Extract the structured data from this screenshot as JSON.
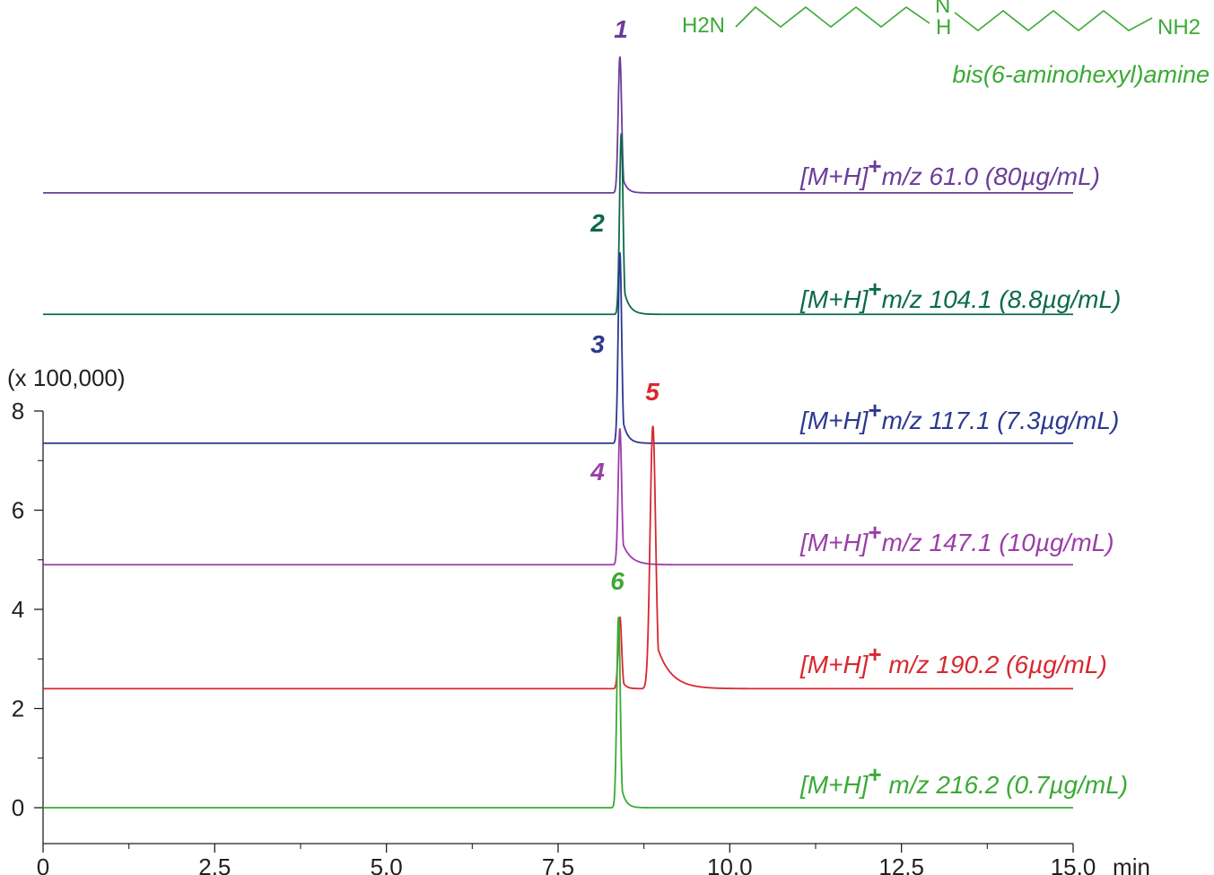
{
  "chart_data": {
    "type": "line",
    "title": "",
    "xlabel": "min",
    "ylabel": "(x 100,000)",
    "x_unit_label": "min",
    "xlim": [
      0,
      15.0
    ],
    "ylim": [
      0,
      8
    ],
    "x_ticks": [
      "0",
      "2.5",
      "5.0",
      "7.5",
      "10.0",
      "12.5",
      "15.0"
    ],
    "x_tick_values": [
      0,
      2.5,
      5.0,
      7.5,
      10.0,
      12.5,
      15.0
    ],
    "y_ticks": [
      "0",
      "2",
      "4",
      "6",
      "8"
    ],
    "y_tick_values": [
      0,
      2,
      4,
      6,
      8
    ],
    "grid": false,
    "series": [
      {
        "name": "[M+H]+m/z 61.0 (80µg/mL)",
        "label_main": "[M+H]",
        "label_sup": "+",
        "label_rest": "m/z 61.0 (80µg/mL)",
        "color": "#6a3d9a",
        "baseline": 12.4,
        "peaks": [
          {
            "x": 8.4,
            "height": 2.75,
            "width": 0.025,
            "tail": 0.06
          }
        ],
        "peak_label": "1"
      },
      {
        "name": "[M+H]+m/z 104.1 (8.8µg/mL)",
        "label_main": "[M+H]",
        "label_sup": "+",
        "label_rest": "m/z 104.1 (8.8µg/mL)",
        "color": "#0b6a4b",
        "baseline": 9.95,
        "peaks": [
          {
            "x": 8.42,
            "height": 3.65,
            "width": 0.025,
            "tail": 0.08
          }
        ],
        "peak_label": "2"
      },
      {
        "name": "[M+H]+m/z 117.1 (7.3µg/mL)",
        "label_main": "[M+H]",
        "label_sup": "+",
        "label_rest": "m/z 117.1 (7.3µg/mL)",
        "color": "#2b3990",
        "baseline": 7.35,
        "peaks": [
          {
            "x": 8.4,
            "height": 3.85,
            "width": 0.025,
            "tail": 0.07
          }
        ],
        "peak_label": "3"
      },
      {
        "name": "[M+H]+m/z 147.1 (10µg/mL)",
        "label_main": "[M+H]",
        "label_sup": "+",
        "label_rest": "m/z 147.1 (10µg/mL)",
        "color": "#9b3ea8",
        "baseline": 4.9,
        "peaks": [
          {
            "x": 8.4,
            "height": 2.75,
            "width": 0.025,
            "tail": 0.12
          }
        ],
        "peak_label": "4"
      },
      {
        "name": "[M+H]+ m/z 190.2 (6µg/mL)",
        "label_main": "[M+H]",
        "label_sup": "+",
        "label_rest": " m/z 190.2 (6µg/mL)",
        "color": "#d7282f",
        "baseline": 2.4,
        "peaks": [
          {
            "x": 8.4,
            "height": 1.45,
            "width": 0.025,
            "tail": 0.05
          },
          {
            "x": 8.88,
            "height": 5.3,
            "width": 0.04,
            "tail": 0.2
          }
        ],
        "peak_label": "5"
      },
      {
        "name": "[M+H]+ m/z 216.2 (0.7µg/mL)",
        "label_main": "[M+H]",
        "label_sup": "+",
        "label_rest": " m/z 216.2 (0.7µg/mL)",
        "color": "#3aaa35",
        "baseline": 0.0,
        "peaks": [
          {
            "x": 8.38,
            "height": 3.85,
            "width": 0.025,
            "tail": 0.06
          }
        ],
        "peak_label": "6"
      }
    ],
    "compound": {
      "name": "bis(6-aminohexyl)amine",
      "color": "#3aaa35",
      "left_group": "H2N",
      "center_atom": "N",
      "center_h": "H",
      "right_group": "NH2"
    }
  }
}
